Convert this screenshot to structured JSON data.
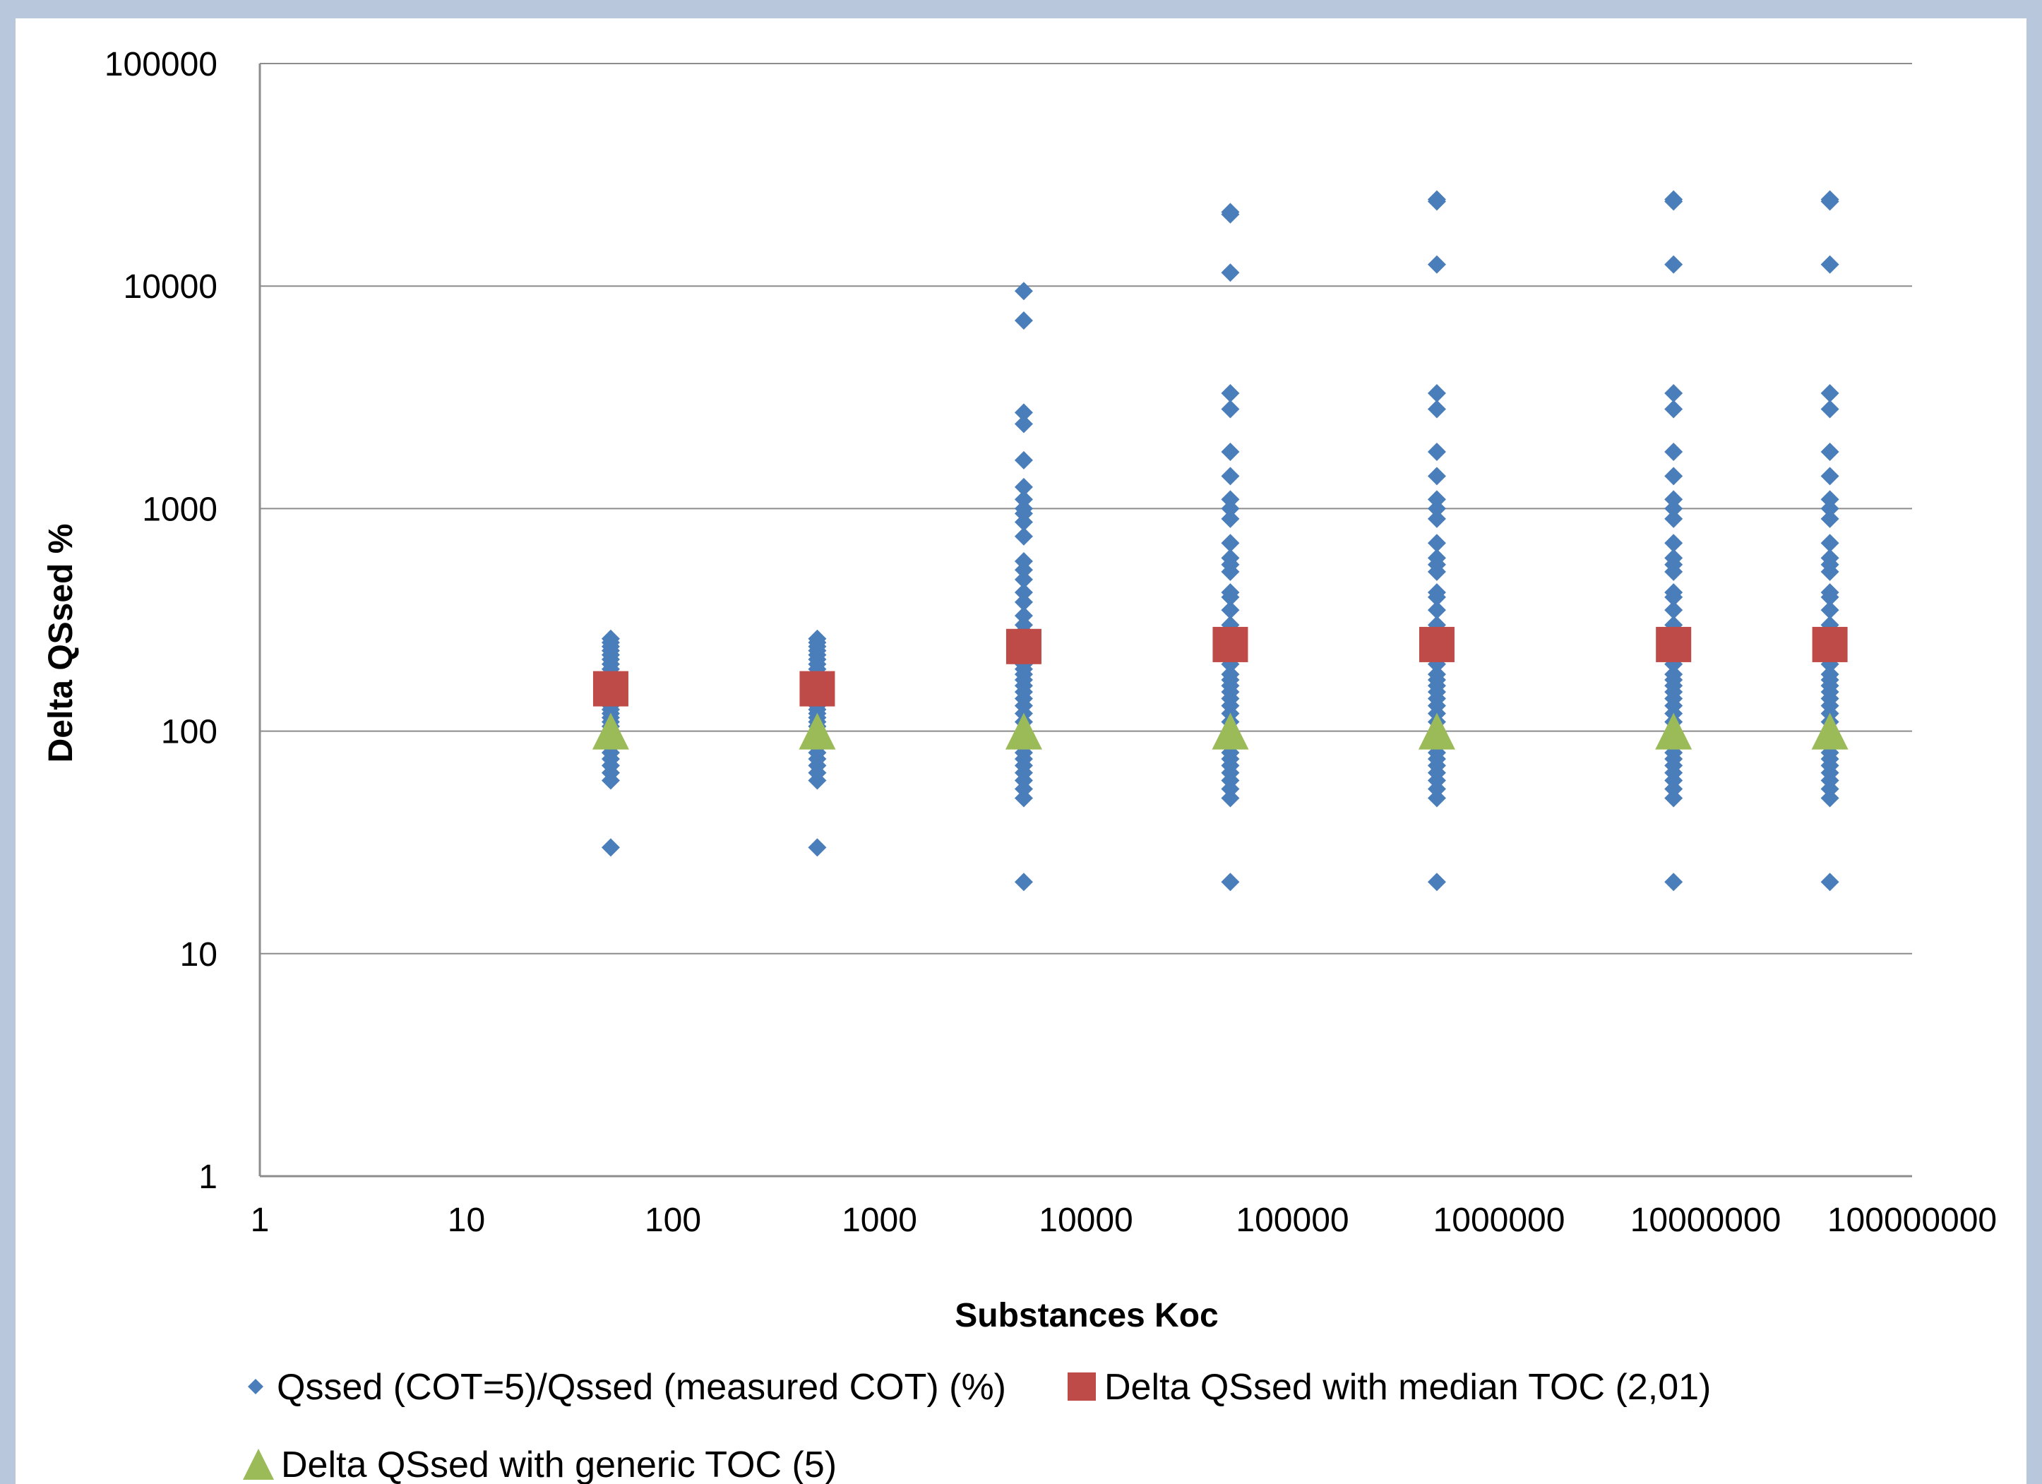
{
  "chart_data": {
    "type": "scatter",
    "title": "",
    "xlabel": "Substances Koc",
    "ylabel": "Delta QSsed %",
    "x_scale": "log",
    "y_scale": "log",
    "xlim": [
      1,
      100000000
    ],
    "ylim": [
      1,
      100000
    ],
    "x_ticks": [
      "1",
      "10",
      "100",
      "1000",
      "10000",
      "100000",
      "1000000",
      "10000000",
      "100000000"
    ],
    "y_ticks": [
      "1",
      "10",
      "100",
      "1000",
      "10000",
      "100000"
    ],
    "grid": "horizontal major gridlines",
    "legend_position": "bottom",
    "series": [
      {
        "name": "Qssed (COT=5)/Qssed (measured COT) (%)",
        "marker": "diamond",
        "color": "#4a7ebb",
        "points": [
          [
            50,
            30
          ],
          [
            50,
            60
          ],
          [
            50,
            65
          ],
          [
            50,
            70
          ],
          [
            50,
            75
          ],
          [
            50,
            80
          ],
          [
            50,
            85
          ],
          [
            50,
            90
          ],
          [
            50,
            95
          ],
          [
            50,
            100
          ],
          [
            50,
            105
          ],
          [
            50,
            110
          ],
          [
            50,
            115
          ],
          [
            50,
            120
          ],
          [
            50,
            125
          ],
          [
            50,
            130
          ],
          [
            50,
            135
          ],
          [
            50,
            140
          ],
          [
            50,
            150
          ],
          [
            50,
            160
          ],
          [
            50,
            170
          ],
          [
            50,
            180
          ],
          [
            50,
            190
          ],
          [
            50,
            200
          ],
          [
            50,
            210
          ],
          [
            50,
            220
          ],
          [
            50,
            230
          ],
          [
            50,
            240
          ],
          [
            50,
            250
          ],
          [
            50,
            260
          ],
          [
            500,
            30
          ],
          [
            500,
            60
          ],
          [
            500,
            65
          ],
          [
            500,
            70
          ],
          [
            500,
            75
          ],
          [
            500,
            80
          ],
          [
            500,
            85
          ],
          [
            500,
            90
          ],
          [
            500,
            95
          ],
          [
            500,
            100
          ],
          [
            500,
            105
          ],
          [
            500,
            110
          ],
          [
            500,
            115
          ],
          [
            500,
            120
          ],
          [
            500,
            125
          ],
          [
            500,
            130
          ],
          [
            500,
            135
          ],
          [
            500,
            140
          ],
          [
            500,
            150
          ],
          [
            500,
            160
          ],
          [
            500,
            170
          ],
          [
            500,
            180
          ],
          [
            500,
            190
          ],
          [
            500,
            200
          ],
          [
            500,
            210
          ],
          [
            500,
            220
          ],
          [
            500,
            230
          ],
          [
            500,
            240
          ],
          [
            500,
            250
          ],
          [
            500,
            260
          ],
          [
            5000,
            21
          ],
          [
            5000,
            50
          ],
          [
            5000,
            55
          ],
          [
            5000,
            60
          ],
          [
            5000,
            65
          ],
          [
            5000,
            70
          ],
          [
            5000,
            75
          ],
          [
            5000,
            80
          ],
          [
            5000,
            90
          ],
          [
            5000,
            100
          ],
          [
            5000,
            110
          ],
          [
            5000,
            120
          ],
          [
            5000,
            130
          ],
          [
            5000,
            140
          ],
          [
            5000,
            150
          ],
          [
            5000,
            160
          ],
          [
            5000,
            170
          ],
          [
            5000,
            180
          ],
          [
            5000,
            190
          ],
          [
            5000,
            200
          ],
          [
            5000,
            220
          ],
          [
            5000,
            240
          ],
          [
            5000,
            260
          ],
          [
            5000,
            280
          ],
          [
            5000,
            300
          ],
          [
            5000,
            330
          ],
          [
            5000,
            380
          ],
          [
            5000,
            420
          ],
          [
            5000,
            480
          ],
          [
            5000,
            530
          ],
          [
            5000,
            580
          ],
          [
            5000,
            750
          ],
          [
            5000,
            870
          ],
          [
            5000,
            950
          ],
          [
            5000,
            1000
          ],
          [
            5000,
            1100
          ],
          [
            5000,
            1250
          ],
          [
            5000,
            1650
          ],
          [
            5000,
            2400
          ],
          [
            5000,
            2700
          ],
          [
            5000,
            7000
          ],
          [
            5000,
            9500
          ],
          [
            50000,
            21
          ],
          [
            50000,
            50
          ],
          [
            50000,
            55
          ],
          [
            50000,
            60
          ],
          [
            50000,
            65
          ],
          [
            50000,
            70
          ],
          [
            50000,
            75
          ],
          [
            50000,
            80
          ],
          [
            50000,
            90
          ],
          [
            50000,
            100
          ],
          [
            50000,
            110
          ],
          [
            50000,
            120
          ],
          [
            50000,
            130
          ],
          [
            50000,
            140
          ],
          [
            50000,
            150
          ],
          [
            50000,
            160
          ],
          [
            50000,
            170
          ],
          [
            50000,
            180
          ],
          [
            50000,
            200
          ],
          [
            50000,
            220
          ],
          [
            50000,
            240
          ],
          [
            50000,
            260
          ],
          [
            50000,
            280
          ],
          [
            50000,
            300
          ],
          [
            50000,
            350
          ],
          [
            50000,
            400
          ],
          [
            50000,
            420
          ],
          [
            50000,
            520
          ],
          [
            50000,
            560
          ],
          [
            50000,
            600
          ],
          [
            50000,
            700
          ],
          [
            50000,
            900
          ],
          [
            50000,
            1000
          ],
          [
            50000,
            1100
          ],
          [
            50000,
            1400
          ],
          [
            50000,
            1800
          ],
          [
            50000,
            2800
          ],
          [
            50000,
            3300
          ],
          [
            50000,
            11500
          ],
          [
            50000,
            21000
          ],
          [
            50000,
            21500
          ],
          [
            500000,
            21
          ],
          [
            500000,
            50
          ],
          [
            500000,
            55
          ],
          [
            500000,
            60
          ],
          [
            500000,
            65
          ],
          [
            500000,
            70
          ],
          [
            500000,
            75
          ],
          [
            500000,
            80
          ],
          [
            500000,
            90
          ],
          [
            500000,
            100
          ],
          [
            500000,
            110
          ],
          [
            500000,
            120
          ],
          [
            500000,
            130
          ],
          [
            500000,
            140
          ],
          [
            500000,
            150
          ],
          [
            500000,
            160
          ],
          [
            500000,
            170
          ],
          [
            500000,
            180
          ],
          [
            500000,
            200
          ],
          [
            500000,
            220
          ],
          [
            500000,
            240
          ],
          [
            500000,
            260
          ],
          [
            500000,
            280
          ],
          [
            500000,
            300
          ],
          [
            500000,
            350
          ],
          [
            500000,
            400
          ],
          [
            500000,
            420
          ],
          [
            500000,
            520
          ],
          [
            500000,
            560
          ],
          [
            500000,
            600
          ],
          [
            500000,
            700
          ],
          [
            500000,
            900
          ],
          [
            500000,
            1000
          ],
          [
            500000,
            1100
          ],
          [
            500000,
            1400
          ],
          [
            500000,
            1800
          ],
          [
            500000,
            2800
          ],
          [
            500000,
            3300
          ],
          [
            500000,
            12500
          ],
          [
            500000,
            24000
          ],
          [
            500000,
            24500
          ],
          [
            7000000,
            21
          ],
          [
            7000000,
            50
          ],
          [
            7000000,
            55
          ],
          [
            7000000,
            60
          ],
          [
            7000000,
            65
          ],
          [
            7000000,
            70
          ],
          [
            7000000,
            75
          ],
          [
            7000000,
            80
          ],
          [
            7000000,
            90
          ],
          [
            7000000,
            100
          ],
          [
            7000000,
            110
          ],
          [
            7000000,
            120
          ],
          [
            7000000,
            130
          ],
          [
            7000000,
            140
          ],
          [
            7000000,
            150
          ],
          [
            7000000,
            160
          ],
          [
            7000000,
            170
          ],
          [
            7000000,
            180
          ],
          [
            7000000,
            200
          ],
          [
            7000000,
            220
          ],
          [
            7000000,
            240
          ],
          [
            7000000,
            260
          ],
          [
            7000000,
            280
          ],
          [
            7000000,
            300
          ],
          [
            7000000,
            350
          ],
          [
            7000000,
            400
          ],
          [
            7000000,
            420
          ],
          [
            7000000,
            520
          ],
          [
            7000000,
            560
          ],
          [
            7000000,
            600
          ],
          [
            7000000,
            700
          ],
          [
            7000000,
            900
          ],
          [
            7000000,
            1000
          ],
          [
            7000000,
            1100
          ],
          [
            7000000,
            1400
          ],
          [
            7000000,
            1800
          ],
          [
            7000000,
            2800
          ],
          [
            7000000,
            3300
          ],
          [
            7000000,
            12500
          ],
          [
            7000000,
            24000
          ],
          [
            7000000,
            24500
          ],
          [
            40000000,
            21
          ],
          [
            40000000,
            50
          ],
          [
            40000000,
            55
          ],
          [
            40000000,
            60
          ],
          [
            40000000,
            65
          ],
          [
            40000000,
            70
          ],
          [
            40000000,
            75
          ],
          [
            40000000,
            80
          ],
          [
            40000000,
            90
          ],
          [
            40000000,
            100
          ],
          [
            40000000,
            110
          ],
          [
            40000000,
            120
          ],
          [
            40000000,
            130
          ],
          [
            40000000,
            140
          ],
          [
            40000000,
            150
          ],
          [
            40000000,
            160
          ],
          [
            40000000,
            170
          ],
          [
            40000000,
            180
          ],
          [
            40000000,
            200
          ],
          [
            40000000,
            220
          ],
          [
            40000000,
            240
          ],
          [
            40000000,
            260
          ],
          [
            40000000,
            280
          ],
          [
            40000000,
            300
          ],
          [
            40000000,
            350
          ],
          [
            40000000,
            400
          ],
          [
            40000000,
            420
          ],
          [
            40000000,
            520
          ],
          [
            40000000,
            560
          ],
          [
            40000000,
            600
          ],
          [
            40000000,
            700
          ],
          [
            40000000,
            900
          ],
          [
            40000000,
            1000
          ],
          [
            40000000,
            1100
          ],
          [
            40000000,
            1400
          ],
          [
            40000000,
            1800
          ],
          [
            40000000,
            2800
          ],
          [
            40000000,
            3300
          ],
          [
            40000000,
            12500
          ],
          [
            40000000,
            24000
          ],
          [
            40000000,
            24500
          ]
        ]
      },
      {
        "name": "Delta QSsed with median TOC (2,01)",
        "marker": "square",
        "color": "#be4b48",
        "points": [
          [
            50,
            155
          ],
          [
            500,
            155
          ],
          [
            5000,
            240
          ],
          [
            50000,
            245
          ],
          [
            500000,
            245
          ],
          [
            7000000,
            245
          ],
          [
            40000000,
            245
          ]
        ]
      },
      {
        "name": "Delta QSsed with generic TOC (5)",
        "marker": "triangle",
        "color": "#9bbb59",
        "points": [
          [
            50,
            100
          ],
          [
            500,
            100
          ],
          [
            5000,
            100
          ],
          [
            50000,
            100
          ],
          [
            500000,
            100
          ],
          [
            7000000,
            100
          ],
          [
            40000000,
            100
          ]
        ]
      }
    ]
  }
}
